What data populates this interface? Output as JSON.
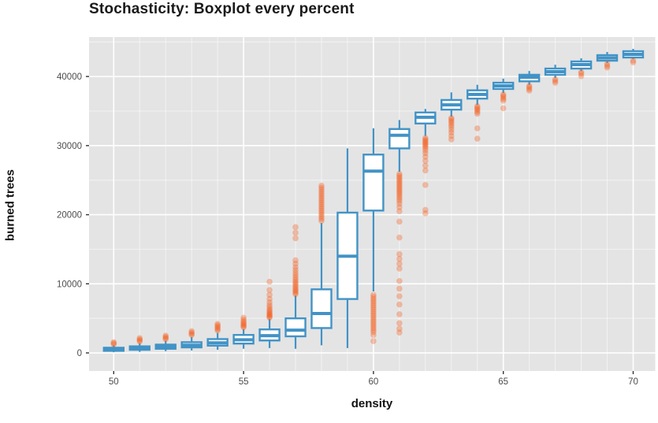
{
  "chart_data": {
    "type": "boxplot",
    "title": "Stochasticity: Boxplot every percent",
    "xlabel": "density",
    "ylabel": "burned trees",
    "xlim": [
      49.05,
      70.85
    ],
    "ylim": [
      -2620,
      45714
    ],
    "x_major_ticks": [
      50,
      55,
      60,
      65,
      70
    ],
    "x_tick_labels": [
      "50",
      "55",
      "60",
      "65",
      "70"
    ],
    "x_minor_ticks": [
      51,
      52,
      53,
      54,
      56,
      57,
      58,
      59,
      61,
      62,
      63,
      64,
      66,
      67,
      68,
      69
    ],
    "y_major_ticks": [
      0,
      10000,
      20000,
      30000,
      40000
    ],
    "y_tick_labels": [
      "0",
      "10000",
      "20000",
      "30000",
      "40000"
    ],
    "y_minor_ticks": [
      5000,
      15000,
      25000,
      35000,
      45000
    ],
    "grid": true,
    "legend": "none",
    "colors": {
      "box_stroke": "#4293c6",
      "box_fill": "#ffffff",
      "outlier": "#f45e20",
      "panel_bg": "#e4e4e4",
      "grid_major": "#ffffff",
      "grid_minor": "#ffffff",
      "tick_label": "#4d4d4d",
      "tick_mark": "#333333"
    },
    "series": [
      {
        "density": 50,
        "low": 100,
        "q1": 300,
        "median": 500,
        "q3": 750,
        "high": 1100,
        "outliers": [
          1250,
          1400,
          1550
        ]
      },
      {
        "density": 51,
        "low": 150,
        "q1": 450,
        "median": 680,
        "q3": 950,
        "high": 1400,
        "outliers": [
          1650,
          1800,
          1950,
          2150
        ]
      },
      {
        "density": 52,
        "low": 250,
        "q1": 600,
        "median": 870,
        "q3": 1200,
        "high": 1750,
        "outliers": [
          2000,
          2150,
          2300,
          2500
        ]
      },
      {
        "density": 53,
        "low": 350,
        "q1": 800,
        "median": 1120,
        "q3": 1550,
        "high": 2300,
        "outliers": [
          2600,
          2750,
          2950,
          3150
        ]
      },
      {
        "density": 54,
        "low": 450,
        "q1": 1050,
        "median": 1450,
        "q3": 2000,
        "high": 2900,
        "outliers": [
          3250,
          3400,
          3600,
          3800,
          4000,
          4200
        ]
      },
      {
        "density": 55,
        "low": 600,
        "q1": 1350,
        "median": 1900,
        "q3": 2600,
        "high": 3450,
        "outliers": [
          3700,
          3850,
          4000,
          4150,
          4350,
          4550,
          4800,
          5100
        ]
      },
      {
        "density": 56,
        "low": 700,
        "q1": 1800,
        "median": 2500,
        "q3": 3400,
        "high": 4900,
        "outliers": [
          5100,
          5250,
          5400,
          5550,
          5700,
          5900,
          6100,
          6300,
          6600,
          6900,
          7300,
          7800,
          8400,
          9100,
          10300
        ]
      },
      {
        "density": 57,
        "low": 600,
        "q1": 2400,
        "median": 3300,
        "q3": 5000,
        "high": 8300,
        "outliers": [
          8500,
          8700,
          8900,
          9100,
          9300,
          9550,
          9800,
          10050,
          10300,
          10600,
          10900,
          11250,
          11600,
          12000,
          12400,
          12900,
          13400,
          16600,
          17400,
          18200
        ]
      },
      {
        "density": 58,
        "low": 1100,
        "q1": 3600,
        "median": 5700,
        "q3": 9200,
        "high": 18800,
        "outliers": [
          19100,
          19400,
          19700,
          20000,
          20300,
          20600,
          20900,
          21200,
          21500,
          21800,
          22100,
          22400,
          22700,
          23000,
          23300,
          23600,
          23900,
          24200
        ]
      },
      {
        "density": 59,
        "low": 700,
        "q1": 7800,
        "median": 14000,
        "q3": 20300,
        "high": 29600,
        "outliers": []
      },
      {
        "density": 60,
        "low": 8900,
        "q1": 20600,
        "median": 26300,
        "q3": 28700,
        "high": 32500,
        "outliers": [
          8400,
          8100,
          7800,
          7500,
          7200,
          6900,
          6600,
          6300,
          6000,
          5700,
          5400,
          5100,
          4800,
          4500,
          4200,
          3900,
          3600,
          3300,
          3000,
          2600,
          1700
        ]
      },
      {
        "density": 61,
        "low": 26200,
        "q1": 29600,
        "median": 31500,
        "q3": 32400,
        "high": 33700,
        "outliers": [
          25900,
          25650,
          25400,
          25150,
          24900,
          24650,
          24400,
          24150,
          23900,
          23650,
          23400,
          23150,
          22900,
          22600,
          22300,
          22000,
          21600,
          21100,
          20500,
          19000,
          16700,
          14300,
          13600,
          12900,
          12200,
          10400,
          9300,
          8200,
          7000,
          5600,
          4300,
          3500,
          2950
        ]
      },
      {
        "density": 62,
        "low": 31400,
        "q1": 33200,
        "median": 34100,
        "q3": 34800,
        "high": 35300,
        "outliers": [
          31100,
          30900,
          30700,
          30500,
          30300,
          30100,
          29900,
          29650,
          29300,
          28900,
          28400,
          27800,
          27100,
          26400,
          24300,
          20700,
          20200
        ]
      },
      {
        "density": 63,
        "low": 34200,
        "q1": 35200,
        "median": 35900,
        "q3": 36600,
        "high": 37700,
        "outliers": [
          34000,
          33800,
          33550,
          33300,
          33000,
          32700,
          32300,
          31900,
          31400,
          30900
        ]
      },
      {
        "density": 64,
        "low": 35900,
        "q1": 36800,
        "median": 37400,
        "q3": 38000,
        "high": 38800,
        "outliers": [
          35700,
          35500,
          35300,
          35100,
          34850,
          34600,
          32500,
          31000
        ]
      },
      {
        "density": 65,
        "low": 37600,
        "q1": 38200,
        "median": 38650,
        "q3": 39100,
        "high": 39700,
        "outliers": [
          37400,
          37200,
          37000,
          36750,
          36500,
          35400
        ]
      },
      {
        "density": 66,
        "low": 38800,
        "q1": 39300,
        "median": 39900,
        "q3": 40250,
        "high": 40800,
        "outliers": [
          38650,
          38450,
          38200,
          37950
        ]
      },
      {
        "density": 67,
        "low": 39800,
        "q1": 40250,
        "median": 40700,
        "q3": 41150,
        "high": 41700,
        "outliers": [
          39600,
          39350,
          39100
        ]
      },
      {
        "density": 68,
        "low": 40800,
        "q1": 41150,
        "median": 41720,
        "q3": 42180,
        "high": 42640,
        "outliers": [
          40650,
          40400,
          40050
        ]
      },
      {
        "density": 69,
        "low": 41950,
        "q1": 42290,
        "median": 42690,
        "q3": 43090,
        "high": 43550,
        "outliers": [
          41850,
          41550,
          41300
        ]
      },
      {
        "density": 70,
        "low": 42500,
        "q1": 42750,
        "median": 43200,
        "q3": 43660,
        "high": 44000,
        "outliers": [
          42300,
          42050
        ]
      }
    ]
  }
}
